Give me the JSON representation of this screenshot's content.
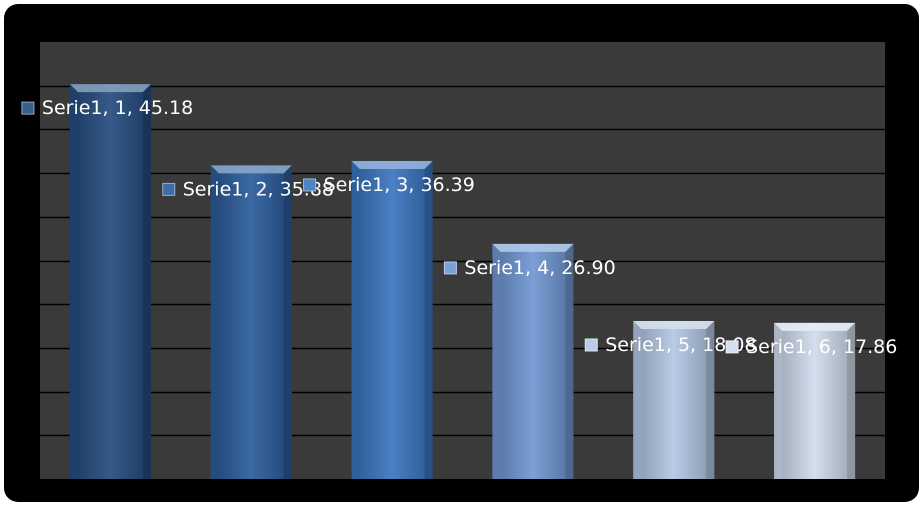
{
  "chart_data": {
    "type": "bar",
    "title": "",
    "xlabel": "",
    "ylabel": "",
    "categories": [
      "1",
      "2",
      "3",
      "4",
      "5",
      "6"
    ],
    "series": [
      {
        "name": "Serie1",
        "values": [
          45.18,
          35.88,
          36.39,
          26.9,
          18.08,
          17.86
        ]
      }
    ],
    "data_labels": [
      "Serie1, 1, 45.18",
      "Serie1, 2, 35.88",
      "Serie1, 3, 36.39",
      "Serie1, 4, 26.90",
      "Serie1, 5, 18.08",
      "Serie1, 6, 17.86"
    ],
    "ylim": [
      0,
      50
    ],
    "y_gridline_step": 5,
    "grid": true,
    "legend": "none",
    "colors": {
      "frame": "#000000",
      "plot_area": "#3a3a3a",
      "gridline": "#000000",
      "bar_fills": [
        "#244c7f",
        "#2b5c9c",
        "#3a75c0",
        "#6f97d2",
        "#b3c6e4",
        "#d0dbed"
      ],
      "label_text": "#ffffff"
    }
  }
}
